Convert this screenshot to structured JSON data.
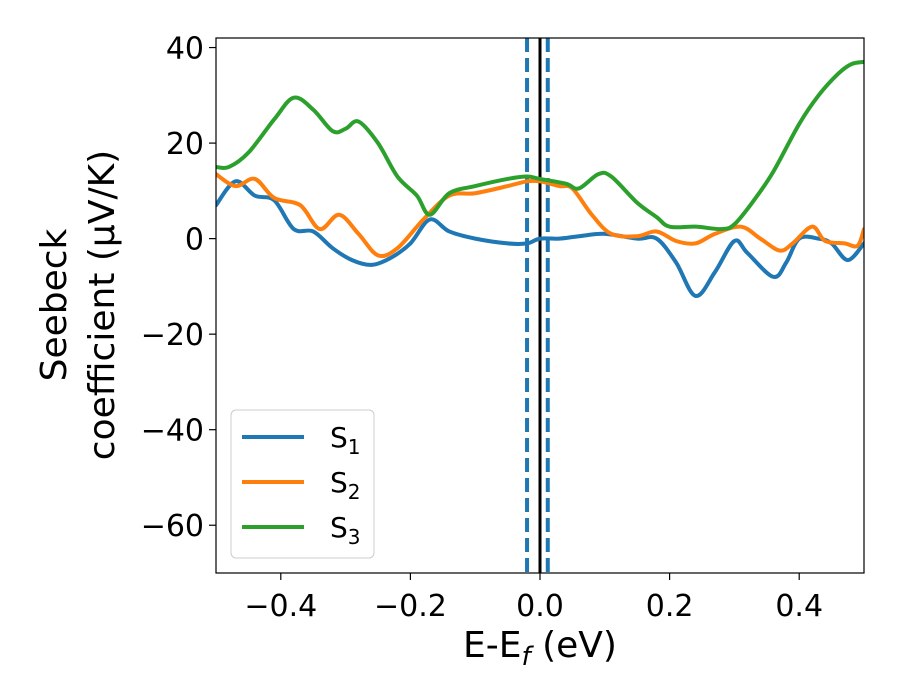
{
  "chart_data": {
    "type": "line",
    "xlabel": "E-E",
    "xlabel_sub": "f",
    "xlabel_unit": " (eV)",
    "ylabel_line1": "Seebeck",
    "ylabel_line2": "coefficient  (μV/K)",
    "xlim": [
      -0.5,
      0.5
    ],
    "ylim": [
      -70,
      42
    ],
    "xticks": [
      -0.4,
      -0.2,
      0.0,
      0.2,
      0.4
    ],
    "xtick_labels": [
      "−0.4",
      "−0.2",
      "0.0",
      "0.2",
      "0.4"
    ],
    "yticks": [
      40,
      20,
      0,
      -20,
      -40,
      -60
    ],
    "ytick_labels": [
      "40",
      "20",
      "0",
      "−20",
      "−40",
      "−60"
    ],
    "grid": false,
    "legend_position": "lower-left",
    "vlines": [
      {
        "x": 0.0,
        "style": "solid",
        "color": "#000000"
      },
      {
        "x": -0.02,
        "style": "dashed",
        "color": "#1f77b4"
      },
      {
        "x": 0.012,
        "style": "dashed",
        "color": "#1f77b4"
      }
    ],
    "series": [
      {
        "name": "S",
        "sub": "1",
        "color": "#1f77b4",
        "points": [
          [
            -0.5,
            7
          ],
          [
            -0.47,
            12
          ],
          [
            -0.44,
            9
          ],
          [
            -0.41,
            8
          ],
          [
            -0.38,
            2
          ],
          [
            -0.35,
            1.5
          ],
          [
            -0.32,
            -2
          ],
          [
            -0.29,
            -4.5
          ],
          [
            -0.26,
            -5.5
          ],
          [
            -0.23,
            -4
          ],
          [
            -0.2,
            -1
          ],
          [
            -0.17,
            4
          ],
          [
            -0.14,
            1.5
          ],
          [
            -0.1,
            0
          ],
          [
            -0.05,
            -1
          ],
          [
            -0.02,
            -1
          ],
          [
            0.0,
            0
          ],
          [
            0.03,
            0
          ],
          [
            0.06,
            0.5
          ],
          [
            0.1,
            1
          ],
          [
            0.15,
            0
          ],
          [
            0.18,
            0
          ],
          [
            0.21,
            -5
          ],
          [
            0.24,
            -12
          ],
          [
            0.27,
            -7
          ],
          [
            0.3,
            -0.5
          ],
          [
            0.32,
            -3
          ],
          [
            0.36,
            -8
          ],
          [
            0.38,
            -5
          ],
          [
            0.4,
            0
          ],
          [
            0.43,
            0
          ],
          [
            0.45,
            -1
          ],
          [
            0.475,
            -4.5
          ],
          [
            0.5,
            -1
          ]
        ]
      },
      {
        "name": "S",
        "sub": "2",
        "color": "#ff7f0e",
        "points": [
          [
            -0.5,
            13.5
          ],
          [
            -0.47,
            11
          ],
          [
            -0.44,
            12.5
          ],
          [
            -0.41,
            8.5
          ],
          [
            -0.37,
            7
          ],
          [
            -0.34,
            2
          ],
          [
            -0.31,
            5
          ],
          [
            -0.28,
            1
          ],
          [
            -0.25,
            -3.5
          ],
          [
            -0.22,
            -2
          ],
          [
            -0.18,
            4
          ],
          [
            -0.14,
            9
          ],
          [
            -0.1,
            9.5
          ],
          [
            -0.05,
            11
          ],
          [
            -0.02,
            12
          ],
          [
            0.0,
            12
          ],
          [
            0.03,
            11
          ],
          [
            0.05,
            10.5
          ],
          [
            0.08,
            5
          ],
          [
            0.11,
            1
          ],
          [
            0.15,
            0.5
          ],
          [
            0.18,
            1.5
          ],
          [
            0.21,
            -0.5
          ],
          [
            0.24,
            -1
          ],
          [
            0.27,
            1
          ],
          [
            0.31,
            2.5
          ],
          [
            0.34,
            0
          ],
          [
            0.37,
            -2.5
          ],
          [
            0.39,
            -1
          ],
          [
            0.42,
            2.5
          ],
          [
            0.44,
            -0.5
          ],
          [
            0.47,
            -1
          ],
          [
            0.49,
            -1.5
          ],
          [
            0.5,
            2
          ]
        ]
      },
      {
        "name": "S",
        "sub": "3",
        "color": "#2ca02c",
        "points": [
          [
            -0.5,
            15
          ],
          [
            -0.48,
            15
          ],
          [
            -0.45,
            18
          ],
          [
            -0.41,
            25
          ],
          [
            -0.38,
            29.5
          ],
          [
            -0.35,
            27
          ],
          [
            -0.32,
            22.5
          ],
          [
            -0.3,
            23
          ],
          [
            -0.28,
            24.5
          ],
          [
            -0.25,
            20
          ],
          [
            -0.22,
            13
          ],
          [
            -0.19,
            9
          ],
          [
            -0.17,
            5
          ],
          [
            -0.14,
            9.5
          ],
          [
            -0.1,
            11
          ],
          [
            -0.05,
            12.5
          ],
          [
            -0.02,
            13
          ],
          [
            0.0,
            12.5
          ],
          [
            0.04,
            11.5
          ],
          [
            0.06,
            10.5
          ],
          [
            0.09,
            13.5
          ],
          [
            0.11,
            13
          ],
          [
            0.15,
            7.5
          ],
          [
            0.18,
            4.5
          ],
          [
            0.2,
            2.5
          ],
          [
            0.24,
            2.5
          ],
          [
            0.28,
            2
          ],
          [
            0.3,
            3
          ],
          [
            0.33,
            8
          ],
          [
            0.36,
            14
          ],
          [
            0.4,
            24
          ],
          [
            0.43,
            30
          ],
          [
            0.46,
            34.5
          ],
          [
            0.48,
            36.5
          ],
          [
            0.5,
            37
          ]
        ]
      }
    ]
  }
}
